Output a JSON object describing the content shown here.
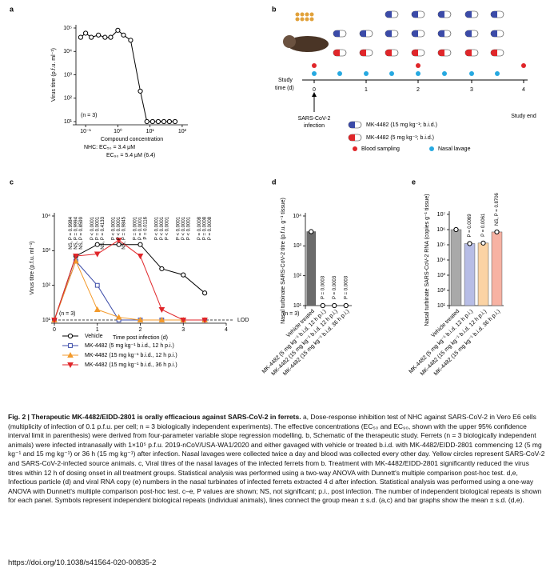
{
  "panel_labels": [
    "a",
    "b",
    "c",
    "d",
    "e"
  ],
  "chart_data": [
    {
      "type": "line",
      "xscale": "log",
      "yscale": "log",
      "xlim": [
        0.05,
        150
      ],
      "ylim": [
        10,
        100000
      ],
      "xticks": [
        {
          "value": 0.1,
          "label": "10⁻¹"
        },
        {
          "value": 1,
          "label": "10⁰"
        },
        {
          "value": 10,
          "label": "10¹"
        },
        {
          "value": 100,
          "label": "10²"
        }
      ],
      "yticks": [
        {
          "value": 10,
          "label": "10¹"
        },
        {
          "value": 100,
          "label": "10²"
        },
        {
          "value": 1000,
          "label": "10³"
        },
        {
          "value": 10000,
          "label": "10⁴"
        },
        {
          "value": 100000,
          "label": "10⁵"
        }
      ],
      "xlabel": "Compound concentration",
      "ylabel": "Virus titre (p.f.u. ml⁻¹)",
      "note": "(n = 3)",
      "ec50": "NHC: EC₅₀ = 3.4 μM",
      "ec90": "EC₉₀ = 5.4 μM (6.4)",
      "series": [
        {
          "color": "#000000",
          "marker": "circle",
          "x": [
            0.07,
            0.1,
            0.15,
            0.25,
            0.4,
            0.6,
            1,
            1.5,
            2.5,
            5,
            8,
            12,
            18,
            27,
            40,
            60
          ],
          "values": [
            40000,
            60000,
            40000,
            50000,
            40000,
            40000,
            80000,
            50000,
            30000,
            200,
            10,
            10,
            10,
            10,
            10,
            10
          ]
        }
      ]
    },
    {
      "type": "line",
      "xscale": "linear",
      "yscale": "log",
      "xlim": [
        0,
        4
      ],
      "ylim": [
        10,
        10000
      ],
      "xticks": [
        0,
        1,
        2,
        3,
        4
      ],
      "yticks": [
        {
          "value": 10,
          "label": "10¹"
        },
        {
          "value": 100,
          "label": "10²"
        },
        {
          "value": 1000,
          "label": "10³"
        },
        {
          "value": 10000,
          "label": "10⁴"
        }
      ],
      "xlabel": "Time post infection (d)",
      "ylabel": "Virus titre (p.f.u. ml⁻¹)",
      "note": "(n = 3)",
      "lod": 10,
      "lod_label": "LOD",
      "x": [
        0,
        0.5,
        1,
        1.5,
        2,
        2.5,
        3,
        3.5
      ],
      "series": [
        {
          "name": "Vehicle",
          "color": "#000000",
          "marker": "circle",
          "values": [
            10,
            700,
            1500,
            1500,
            1500,
            300,
            200,
            60
          ]
        },
        {
          "name": "MK-4482 (5 mg kg⁻¹ b.i.d., 12 h p.i.)",
          "color": "#3b4ba8",
          "marker": "square",
          "values": [
            10,
            500,
            100,
            10,
            10,
            10,
            10,
            10
          ]
        },
        {
          "name": "MK-4482 (15 mg kg⁻¹ b.i.d., 12 h p.i.)",
          "color": "#f39a2b",
          "marker": "triangle",
          "values": [
            10,
            500,
            20,
            12,
            10,
            10,
            10,
            10
          ]
        },
        {
          "name": "MK-4482 (15 mg kg⁻¹ b.i.d., 36 h p.i.)",
          "color": "#e0262a",
          "marker": "triangle-down",
          "values": [
            10,
            700,
            800,
            2000,
            700,
            20,
            10,
            10
          ]
        }
      ],
      "p_labels": [
        {
          "x": 0.5,
          "texts": [
            "NS, P = 0.9984",
            "NS, P = 0.9994",
            "NS, P = 0.8599"
          ]
        },
        {
          "x": 1,
          "texts": [
            "P < 0.0001",
            "P = 0.0001",
            "NS, P = 0.4133"
          ]
        },
        {
          "x": 1.5,
          "texts": [
            "P < 0.0001",
            "P < 0.0001",
            "NS, P = 0.9845"
          ]
        },
        {
          "x": 2,
          "texts": [
            "P = 0.0001",
            "P = 0.0001",
            "P = 0.0116"
          ]
        },
        {
          "x": 2.5,
          "texts": [
            "P < 0.0001",
            "P < 0.0001",
            "P < 0.0001"
          ]
        },
        {
          "x": 3,
          "texts": [
            "P < 0.0001",
            "P < 0.0001",
            "P < 0.0001"
          ]
        },
        {
          "x": 3.5,
          "texts": [
            "P = 0.0008",
            "P = 0.0008",
            "P = 0.0008"
          ]
        }
      ]
    },
    {
      "type": "bar",
      "yscale": "log",
      "ylim": [
        10,
        10000
      ],
      "yticks": [
        {
          "value": 10,
          "label": "10¹"
        },
        {
          "value": 100,
          "label": "10²"
        },
        {
          "value": 1000,
          "label": "10³"
        },
        {
          "value": 10000,
          "label": "10⁴"
        }
      ],
      "ylabel": "Nasal turbinate SARS-CoV-2 titre (p.f.u. g⁻¹ tissue)",
      "note": "(n = 3)",
      "categories": [
        "Vehicle treated",
        "MK-4482 (5 mg kg⁻¹ b.i.d. 12 h p.i.)",
        "MK-4482 (15 mg kg⁻¹ b.i.d. 12 h p.i.)",
        "MK-4482 (15 mg kg⁻¹ b.i.d. 36 h p.i.)"
      ],
      "values": [
        3000,
        10,
        10,
        10
      ],
      "colors": [
        "#6b6b6b",
        "#b7bde6",
        "#fbd3a4",
        "#f7b2a3"
      ],
      "p_labels": [
        null,
        "P = 0.0003",
        "P = 0.0003",
        "P = 0.0003"
      ]
    },
    {
      "type": "bar",
      "yscale": "log",
      "ylim": [
        10,
        10000000
      ],
      "yticks": [
        {
          "value": 10,
          "label": "10¹"
        },
        {
          "value": 100,
          "label": "10²"
        },
        {
          "value": 1000,
          "label": "10³"
        },
        {
          "value": 10000,
          "label": "10⁴"
        },
        {
          "value": 100000,
          "label": "10⁵"
        },
        {
          "value": 1000000,
          "label": "10⁶"
        },
        {
          "value": 10000000,
          "label": "10⁷"
        }
      ],
      "ylabel": "Nasal turbinate SARS-CoV-2 RNA (copies g⁻¹ tissue)",
      "categories": [
        "Vehicle treated",
        "MK-4482 (5 mg kg⁻¹ b.i.d. 12 h p.i.)",
        "MK-4482 (15 mg kg⁻¹ b.i.d. 12 h p.i.)",
        "MK-4482 (15 mg kg⁻¹ b.i.d. 36 h p.i.)"
      ],
      "values": [
        1000000,
        120000,
        130000,
        700000
      ],
      "colors": [
        "#a9a9a9",
        "#b7bde6",
        "#fbd3a4",
        "#f7b2a3"
      ],
      "p_labels": [
        null,
        "P = 0.0069",
        "P = 0.0061",
        "NS, P = 0.8706"
      ]
    }
  ],
  "panel_b": {
    "time_label": "Study",
    "time_label2": "time (d)",
    "days": [
      "0",
      "1",
      "2",
      "3",
      "4"
    ],
    "study_end": "Study end",
    "infection": "SARS-CoV-2",
    "infection2": "infection",
    "legend": [
      "MK-4482 (15 mg kg⁻¹; b.i.d.)",
      "MK-4482 (5 mg kg⁻¹; b.i.d.)",
      "Blood sampling",
      "Nasal lavage"
    ]
  },
  "caption": {
    "title": "Fig. 2 | Therapeutic MK-4482/EIDD-2801 is orally efficacious against SARS-CoV-2 in ferrets.",
    "text": " a, Dose-response inhibition test of NHC against SARS-CoV-2 in Vero E6 cells (multiplicity of infection of 0.1 p.f.u. per cell; n = 3 biologically independent experiments). The effective concentrations (EC₅₀ and EC₉₀, shown with the upper 95% confidence interval limit in parenthesis) were derived from four-parameter variable slope regression modelling. b, Schematic of the therapeutic study. Ferrets (n = 3 biologically independent animals) were infected intranasally with 1×10⁵ p.f.u. 2019-nCoV/USA-WA1/2020 and either gavaged with vehicle or treated b.i.d. with MK-4482/EIDD-2801 commencing 12 (5 mg kg⁻¹ and 15 mg kg⁻¹) or 36 h (15 mg kg⁻¹) after infection. Nasal lavages were collected twice a day and blood was collected every other day. Yellow circles represent SARS-CoV-2 and SARS-CoV-2-infected source animals. c, Viral titres of the nasal lavages of the infected ferrets from b. Treatment with MK-4482/EIDD-2801 significantly reduced the virus titres within 12 h of dosing onset in all treatment groups. Statistical analysis was performed using a two-way ANOVA with Dunnett's multiple comparison post-hoc test. d,e, Infectious particle (d) and viral RNA copy (e) numbers in the nasal turbinates of infected ferrets extracted 4 d after infection. Statistical analysis was performed using a one-way ANOVA with Dunnett's multiple comparison post-hoc test. c–e, P values are shown; NS, not significant; p.i., post infection. The number of independent biological repeats is shown for each panel. Symbols represent independent biological repeats (individual animals), lines connect the group mean ± s.d. (a,c) and bar graphs show the mean ± s.d. (d,e).",
    "doi": "https://doi.org/10.1038/s41564-020-00835-2"
  }
}
